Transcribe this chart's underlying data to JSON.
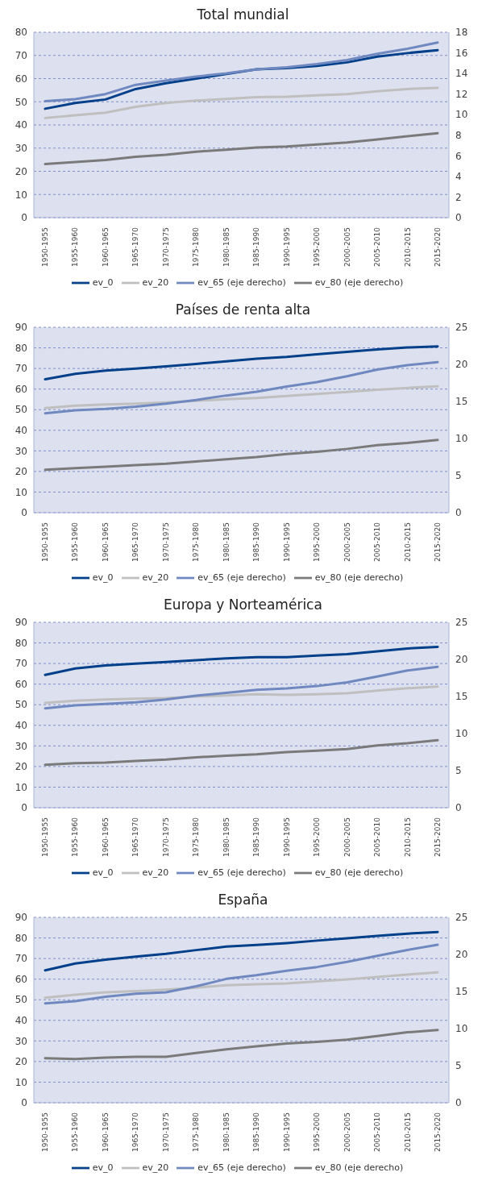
{
  "chart_data": [
    {
      "type": "line",
      "title": "Total mundial",
      "categories": [
        "1950-1955",
        "1955-1960",
        "1960-1965",
        "1965-1970",
        "1970-1975",
        "1975-1980",
        "1980-1985",
        "1985-1990",
        "1990-1995",
        "1995-2000",
        "2000-2005",
        "2005-2010",
        "2010-2015",
        "2015-2020"
      ],
      "series": [
        {
          "name": "ev_0",
          "color": "#003f8a",
          "values": [
            47,
            49.5,
            51,
            55.5,
            58,
            60,
            62,
            64,
            64.5,
            65.5,
            67,
            69.5,
            71,
            72.3
          ]
        },
        {
          "name": "ev_20",
          "color": "#bfbfbf",
          "values": [
            43,
            44.2,
            45.3,
            47.8,
            49.5,
            50.5,
            51.2,
            52,
            52.2,
            52.8,
            53.3,
            54.5,
            55.5,
            56
          ]
        },
        {
          "name": "ev_65 (eje derecho)",
          "color": "#7088c0",
          "axis": "y2",
          "values": [
            11.3,
            11.5,
            12.0,
            12.9,
            13.3,
            13.7,
            14.0,
            14.4,
            14.6,
            14.9,
            15.3,
            15.9,
            16.4,
            17.0
          ]
        },
        {
          "name": "ev_80 (eje derecho)",
          "color": "#7a7a7a",
          "axis": "y2",
          "values": [
            5.2,
            5.4,
            5.6,
            5.9,
            6.1,
            6.4,
            6.6,
            6.8,
            6.9,
            7.1,
            7.3,
            7.6,
            7.9,
            8.2
          ]
        }
      ],
      "ylim": [
        0,
        80
      ],
      "yticks": [
        0,
        10,
        20,
        30,
        40,
        50,
        60,
        70,
        80
      ],
      "y2lim": [
        0,
        18
      ],
      "y2ticks": [
        0,
        2,
        4,
        6,
        8,
        10,
        12,
        14,
        16,
        18
      ],
      "grid": "y",
      "legend": "bottom",
      "marker": "none",
      "line_style": "solid"
    },
    {
      "type": "line",
      "title": "Países de renta alta",
      "categories": [
        "1950-1955",
        "1955-1960",
        "1960-1965",
        "1965-1970",
        "1970-1975",
        "1975-1980",
        "1980-1985",
        "1985-1990",
        "1990-1995",
        "1995-2000",
        "2000-2005",
        "2005-2010",
        "2010-2015",
        "2015-2020"
      ],
      "series": [
        {
          "name": "ev_0",
          "color": "#003f8a",
          "values": [
            64.8,
            67.4,
            69,
            69.9,
            71,
            72.2,
            73.5,
            74.7,
            75.6,
            76.9,
            78.1,
            79.2,
            80.2,
            80.7
          ]
        },
        {
          "name": "ev_20",
          "color": "#bfbfbf",
          "values": [
            50.8,
            51.9,
            52.5,
            52.9,
            53.5,
            54.3,
            55.1,
            55.7,
            56.6,
            57.6,
            58.6,
            59.7,
            60.6,
            61.3
          ]
        },
        {
          "name": "ev_65 (eje derecho)",
          "color": "#7088c0",
          "axis": "y2",
          "values": [
            13.4,
            13.8,
            14.0,
            14.3,
            14.7,
            15.2,
            15.8,
            16.3,
            17.0,
            17.6,
            18.4,
            19.3,
            19.9,
            20.3
          ]
        },
        {
          "name": "ev_80 (eje derecho)",
          "color": "#7a7a7a",
          "axis": "y2",
          "values": [
            5.8,
            6.0,
            6.2,
            6.4,
            6.6,
            6.9,
            7.2,
            7.5,
            7.9,
            8.2,
            8.6,
            9.1,
            9.4,
            9.8
          ]
        }
      ],
      "ylim": [
        0,
        90
      ],
      "yticks": [
        0,
        10,
        20,
        30,
        40,
        50,
        60,
        70,
        80,
        90
      ],
      "y2lim": [
        0,
        25
      ],
      "y2ticks": [
        0,
        5,
        10,
        15,
        20,
        25
      ],
      "grid": "y",
      "legend": "bottom",
      "marker": "none",
      "line_style": "solid"
    },
    {
      "type": "line",
      "title": "Europa y Norteamérica",
      "categories": [
        "1950-1955",
        "1955-1960",
        "1960-1965",
        "1965-1970",
        "1970-1975",
        "1975-1980",
        "1980-1985",
        "1985-1990",
        "1990-1995",
        "1995-2000",
        "2000-2005",
        "2005-2010",
        "2010-2015",
        "2015-2020"
      ],
      "series": [
        {
          "name": "ev_0",
          "color": "#003f8a",
          "values": [
            64.5,
            67.6,
            69.1,
            69.9,
            70.7,
            71.6,
            72.5,
            73.1,
            73.1,
            73.9,
            74.5,
            75.9,
            77.3,
            78.1
          ]
        },
        {
          "name": "ev_20",
          "color": "#bfbfbf",
          "values": [
            50.9,
            51.9,
            52.5,
            52.9,
            53.2,
            54.0,
            54.5,
            55.1,
            54.8,
            55.1,
            55.6,
            56.8,
            58.0,
            58.8
          ]
        },
        {
          "name": "ev_65 (eje derecho)",
          "color": "#7088c0",
          "axis": "y2",
          "values": [
            13.4,
            13.8,
            14.0,
            14.2,
            14.6,
            15.1,
            15.5,
            15.9,
            16.1,
            16.4,
            16.9,
            17.7,
            18.5,
            19.0
          ]
        },
        {
          "name": "ev_80 (eje derecho)",
          "color": "#7a7a7a",
          "axis": "y2",
          "values": [
            5.8,
            6.0,
            6.1,
            6.3,
            6.5,
            6.8,
            7.0,
            7.2,
            7.5,
            7.7,
            7.9,
            8.4,
            8.7,
            9.1
          ]
        }
      ],
      "ylim": [
        0,
        90
      ],
      "yticks": [
        0,
        10,
        20,
        30,
        40,
        50,
        60,
        70,
        80,
        90
      ],
      "y2lim": [
        0,
        25
      ],
      "y2ticks": [
        0,
        5,
        10,
        15,
        20,
        25
      ],
      "grid": "y",
      "legend": "bottom",
      "marker": "none",
      "line_style": "solid"
    },
    {
      "type": "line",
      "title": "España",
      "categories": [
        "1950-1955",
        "1955-1960",
        "1960-1965",
        "1965-1970",
        "1970-1975",
        "1975-1980",
        "1980-1985",
        "1985-1990",
        "1990-1995",
        "1995-2000",
        "2000-2005",
        "2005-2010",
        "2010-2015",
        "2015-2020"
      ],
      "series": [
        {
          "name": "ev_0",
          "color": "#003f8a",
          "values": [
            64.3,
            67.6,
            69.5,
            70.9,
            72.3,
            74.1,
            75.8,
            76.6,
            77.5,
            78.7,
            79.8,
            81.0,
            82.1,
            82.9
          ]
        },
        {
          "name": "ev_20",
          "color": "#bfbfbf",
          "values": [
            51.0,
            52.4,
            53.6,
            54.2,
            54.9,
            55.9,
            57.0,
            57.5,
            57.9,
            58.9,
            59.9,
            61.0,
            62.2,
            63.3
          ]
        },
        {
          "name": "ev_65 (eje derecho)",
          "color": "#7088c0",
          "axis": "y2",
          "values": [
            13.4,
            13.7,
            14.3,
            14.7,
            14.9,
            15.7,
            16.7,
            17.2,
            17.8,
            18.3,
            19.0,
            19.8,
            20.6,
            21.3
          ]
        },
        {
          "name": "ev_80 (eje derecho)",
          "color": "#7a7a7a",
          "axis": "y2",
          "values": [
            6.0,
            5.9,
            6.1,
            6.2,
            6.2,
            6.7,
            7.2,
            7.6,
            8.0,
            8.2,
            8.5,
            9.0,
            9.5,
            9.8
          ]
        }
      ],
      "ylim": [
        0,
        90
      ],
      "yticks": [
        0,
        10,
        20,
        30,
        40,
        50,
        60,
        70,
        80,
        90
      ],
      "y2lim": [
        0,
        25
      ],
      "y2ticks": [
        0,
        5,
        10,
        15,
        20,
        25
      ],
      "grid": "y",
      "legend": "bottom",
      "marker": "none",
      "line_style": "solid"
    }
  ]
}
